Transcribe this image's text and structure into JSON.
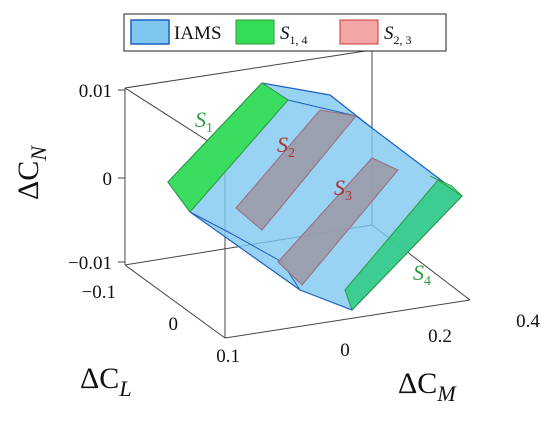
{
  "chart_data": {
    "type": "3d-polytope",
    "axes": {
      "x": {
        "symbol": "ΔC",
        "subscript": "M",
        "ticks": [
          "0",
          "0.2",
          "0.4"
        ],
        "range": [
          -0.1,
          0.4
        ]
      },
      "y": {
        "symbol": "ΔC",
        "subscript": "L",
        "ticks": [
          "−0.1",
          "0",
          "0.1"
        ],
        "range": [
          -0.12,
          0.12
        ]
      },
      "z": {
        "symbol": "ΔC",
        "subscript": "N",
        "ticks": [
          "0.01",
          "0",
          "−0.01"
        ],
        "range": [
          -0.011,
          0.011
        ]
      }
    },
    "grid": false,
    "legend": {
      "placement": "top",
      "entries": [
        {
          "main": "IAMS",
          "sub": "",
          "color": "#7ec8f0",
          "edge": "#1f5fbf"
        },
        {
          "main": "S",
          "sub": "1, 4",
          "label": "S₁, S₄",
          "color": "#33dd55",
          "edge": "#2a9d3a"
        },
        {
          "main": "S",
          "sub": "2, 3",
          "label": "S₂, S₃",
          "color": "#f4a6a6",
          "edge": "#cc3333"
        }
      ]
    },
    "annotations": [
      {
        "base": "S",
        "index": "1",
        "color": "#2e9e3e"
      },
      {
        "base": "S",
        "index": "2",
        "color": "#b03030"
      },
      {
        "base": "S",
        "index": "3",
        "color": "#b03030"
      },
      {
        "base": "S",
        "index": "4",
        "color": "#2e9e3e"
      }
    ],
    "series": [
      {
        "name": "IAMS",
        "kind": "polytope"
      },
      {
        "name": "S₁, S₄",
        "kind": "slab",
        "members": [
          "S₁",
          "S₄"
        ]
      },
      {
        "name": "S₂, S₃",
        "kind": "slab",
        "members": [
          "S₂",
          "S₃"
        ]
      }
    ]
  }
}
